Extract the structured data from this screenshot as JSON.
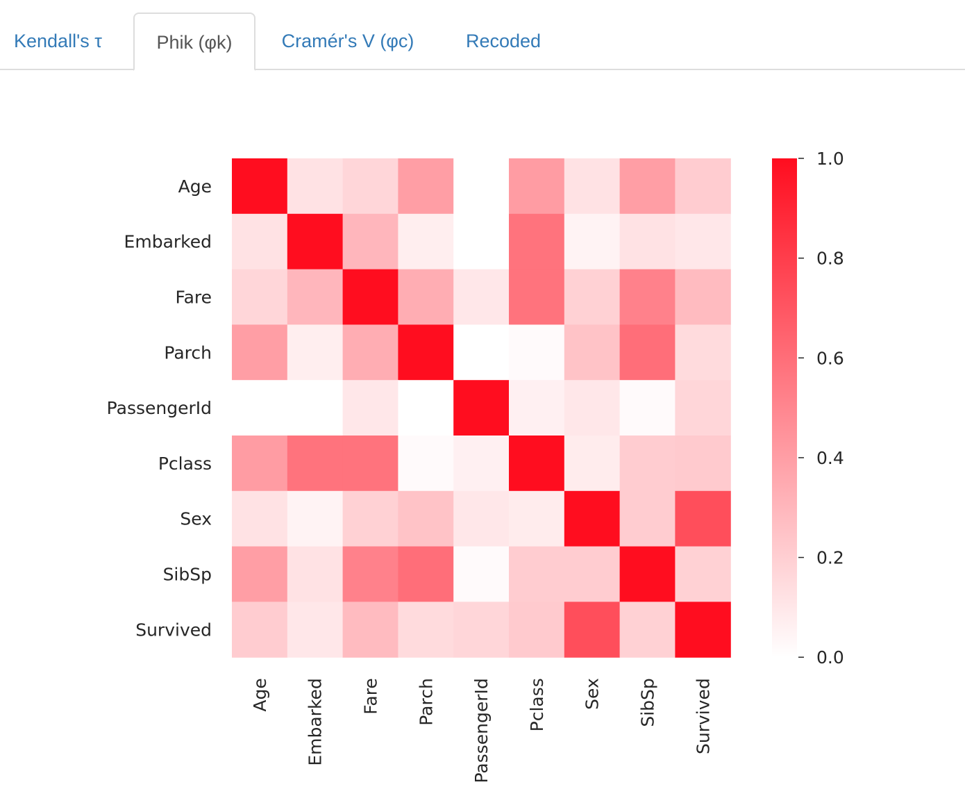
{
  "tabs": [
    {
      "label": "Kendall's τ",
      "active": false
    },
    {
      "label": "Phik (φk)",
      "active": true
    },
    {
      "label": "Cramér's V (φc)",
      "active": false
    },
    {
      "label": "Recoded",
      "active": false
    }
  ],
  "chart_data": {
    "type": "heatmap",
    "title": "",
    "xlabel": "",
    "ylabel": "",
    "rows": [
      "Age",
      "Embarked",
      "Fare",
      "Parch",
      "PassengerId",
      "Pclass",
      "Sex",
      "SibSp",
      "Survived"
    ],
    "columns": [
      "Age",
      "Embarked",
      "Fare",
      "Parch",
      "PassengerId",
      "Pclass",
      "Sex",
      "SibSp",
      "Survived"
    ],
    "values": [
      [
        1.0,
        0.12,
        0.17,
        0.4,
        0.0,
        0.41,
        0.12,
        0.4,
        0.21
      ],
      [
        0.12,
        1.0,
        0.3,
        0.07,
        0.0,
        0.58,
        0.05,
        0.12,
        0.1
      ],
      [
        0.17,
        0.3,
        1.0,
        0.34,
        0.1,
        0.58,
        0.19,
        0.52,
        0.28
      ],
      [
        0.4,
        0.07,
        0.34,
        1.0,
        0.0,
        0.02,
        0.25,
        0.6,
        0.15
      ],
      [
        0.0,
        0.0,
        0.1,
        0.0,
        1.0,
        0.06,
        0.1,
        0.02,
        0.17
      ],
      [
        0.41,
        0.58,
        0.58,
        0.02,
        0.06,
        1.0,
        0.08,
        0.21,
        0.22
      ],
      [
        0.12,
        0.05,
        0.19,
        0.25,
        0.1,
        0.08,
        1.0,
        0.21,
        0.73
      ],
      [
        0.4,
        0.12,
        0.52,
        0.6,
        0.02,
        0.21,
        0.21,
        1.0,
        0.19
      ],
      [
        0.21,
        0.1,
        0.28,
        0.15,
        0.17,
        0.22,
        0.73,
        0.19,
        1.0
      ]
    ],
    "vmin": 0.0,
    "vmax": 1.0,
    "colormap": {
      "low": "#ffffff",
      "high": "#ff0d1f"
    },
    "colorbar_ticks": [
      "0.0",
      "0.2",
      "0.4",
      "0.6",
      "0.8",
      "1.0"
    ],
    "grid": false,
    "legend": "colorbar-right"
  },
  "colors": {
    "tab_link": "#337ab7",
    "tab_active": "#555555",
    "tab_border": "#dddddd"
  }
}
